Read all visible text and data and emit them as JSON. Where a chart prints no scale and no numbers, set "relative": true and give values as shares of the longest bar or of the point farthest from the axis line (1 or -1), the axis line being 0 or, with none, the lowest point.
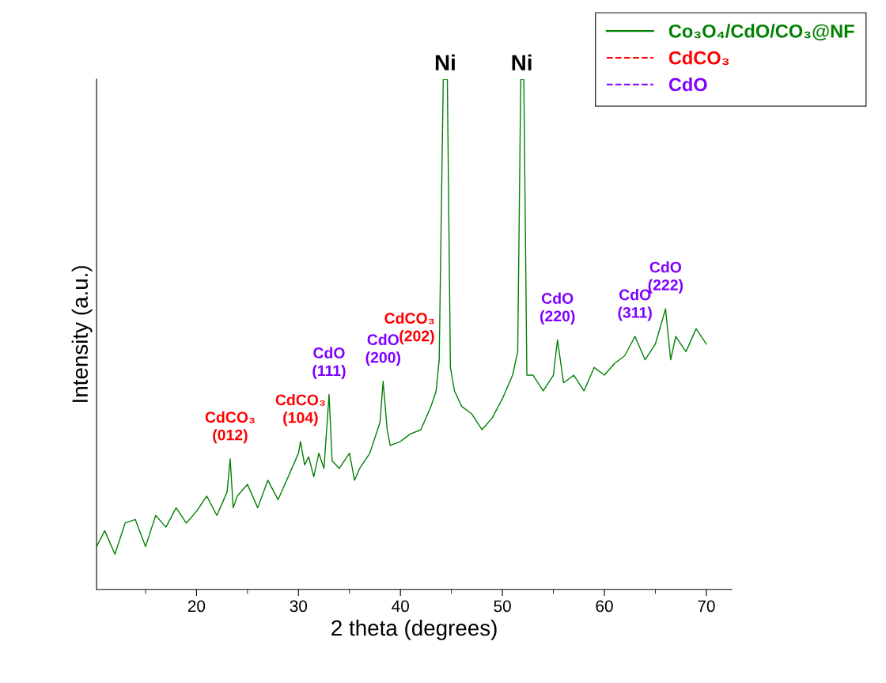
{
  "chart_data": {
    "type": "line",
    "relative": true,
    "xlabel": "2 theta (degrees)",
    "ylabel": "Intensity (a.u.)",
    "xlim": [
      10.2,
      72.5
    ],
    "xticks": [
      20,
      30,
      40,
      50,
      60,
      70
    ],
    "legend": "top right",
    "grid": false,
    "x": [
      10.2,
      11,
      12,
      13,
      14,
      15,
      16,
      17,
      18,
      19,
      20,
      21,
      22,
      23,
      23.3,
      23.6,
      24,
      25,
      26,
      27,
      28,
      29,
      30,
      30.2,
      30.6,
      31,
      31.5,
      32,
      32.5,
      33,
      33.3,
      34,
      35,
      35.5,
      36,
      37,
      38,
      38.3,
      38.7,
      39,
      40,
      41,
      42,
      43,
      43.5,
      43.8,
      44.2,
      44.6,
      44.9,
      45.3,
      46,
      47,
      48,
      49,
      50,
      51,
      51.5,
      51.8,
      52.1,
      52.4,
      53,
      54,
      55,
      55.4,
      56,
      57,
      58,
      59,
      60,
      61,
      62,
      63,
      64,
      65,
      66,
      66.5,
      67,
      68,
      69,
      70
    ],
    "series": [
      {
        "name": "Co₃O₄/CdO/CO₃@NF",
        "color": "#008000",
        "line_style": "solid",
        "values": [
          0.084,
          0.115,
          0.069,
          0.13,
          0.137,
          0.084,
          0.145,
          0.122,
          0.16,
          0.13,
          0.153,
          0.183,
          0.145,
          0.191,
          0.256,
          0.16,
          0.183,
          0.206,
          0.16,
          0.214,
          0.176,
          0.221,
          0.267,
          0.29,
          0.244,
          0.26,
          0.221,
          0.267,
          0.237,
          0.382,
          0.252,
          0.237,
          0.267,
          0.214,
          0.237,
          0.267,
          0.328,
          0.408,
          0.313,
          0.282,
          0.29,
          0.305,
          0.313,
          0.359,
          0.389,
          0.45,
          1.0,
          1.0,
          0.435,
          0.389,
          0.359,
          0.344,
          0.313,
          0.336,
          0.374,
          0.42,
          0.466,
          1.0,
          1.0,
          0.42,
          0.42,
          0.389,
          0.42,
          0.489,
          0.405,
          0.42,
          0.389,
          0.435,
          0.42,
          0.443,
          0.458,
          0.496,
          0.45,
          0.481,
          0.55,
          0.45,
          0.496,
          0.466,
          0.511,
          0.481
        ]
      },
      {
        "name": "CdCO₃",
        "color": "#ff0000",
        "line_style": "dashed",
        "values": [
          null,
          null,
          null,
          null,
          null,
          null,
          null,
          null,
          null,
          null,
          null,
          null,
          null,
          null,
          null,
          null,
          null,
          null,
          null,
          null,
          null,
          null,
          null,
          null,
          null,
          null,
          null,
          null,
          null,
          null,
          null,
          null,
          null,
          null,
          null,
          null,
          null,
          null,
          null,
          null,
          null,
          null,
          null,
          null,
          null,
          null,
          null,
          null,
          null,
          null,
          null,
          null,
          null,
          null,
          null,
          null,
          null,
          null,
          null,
          null,
          null,
          null,
          null,
          null,
          null,
          null,
          null,
          null,
          null,
          null,
          null,
          null,
          null,
          null,
          null,
          null,
          null,
          null,
          null,
          null
        ]
      },
      {
        "name": "CdO",
        "color": "#8000ff",
        "line_style": "dashed",
        "values": [
          null,
          null,
          null,
          null,
          null,
          null,
          null,
          null,
          null,
          null,
          null,
          null,
          null,
          null,
          null,
          null,
          null,
          null,
          null,
          null,
          null,
          null,
          null,
          null,
          null,
          null,
          null,
          null,
          null,
          null,
          null,
          null,
          null,
          null,
          null,
          null,
          null,
          null,
          null,
          null,
          null,
          null,
          null,
          null,
          null,
          null,
          null,
          null,
          null,
          null,
          null,
          null,
          null,
          null,
          null,
          null,
          null,
          null,
          null,
          null,
          null,
          null,
          null,
          null,
          null,
          null,
          null,
          null,
          null,
          null,
          null,
          null,
          null,
          null,
          null,
          null,
          null,
          null,
          null,
          null
        ]
      }
    ],
    "annotations": [
      {
        "text": "CdCO₃\n(012)",
        "x": 23.3,
        "y": 0.256
      },
      {
        "text": "CdCO₃\n(104)",
        "x": 30.2,
        "y": 0.29
      },
      {
        "text": "CdO\n(111)",
        "x": 33,
        "y": 0.382
      },
      {
        "text": "CdO\n(200)",
        "x": 38.3,
        "y": 0.408
      },
      {
        "text": "CdCO₃\n(202)",
        "x": 43.8,
        "y": 0.45
      },
      {
        "text": "Ni",
        "x": 44.4,
        "y": 1.0
      },
      {
        "text": "Ni",
        "x": 51.9,
        "y": 1.0
      },
      {
        "text": "CdO\n(220)",
        "x": 55.4,
        "y": 0.489
      },
      {
        "text": "CdO\n(311)",
        "x": 63,
        "y": 0.496
      },
      {
        "text": "CdO\n(222)",
        "x": 66,
        "y": 0.55
      }
    ]
  }
}
